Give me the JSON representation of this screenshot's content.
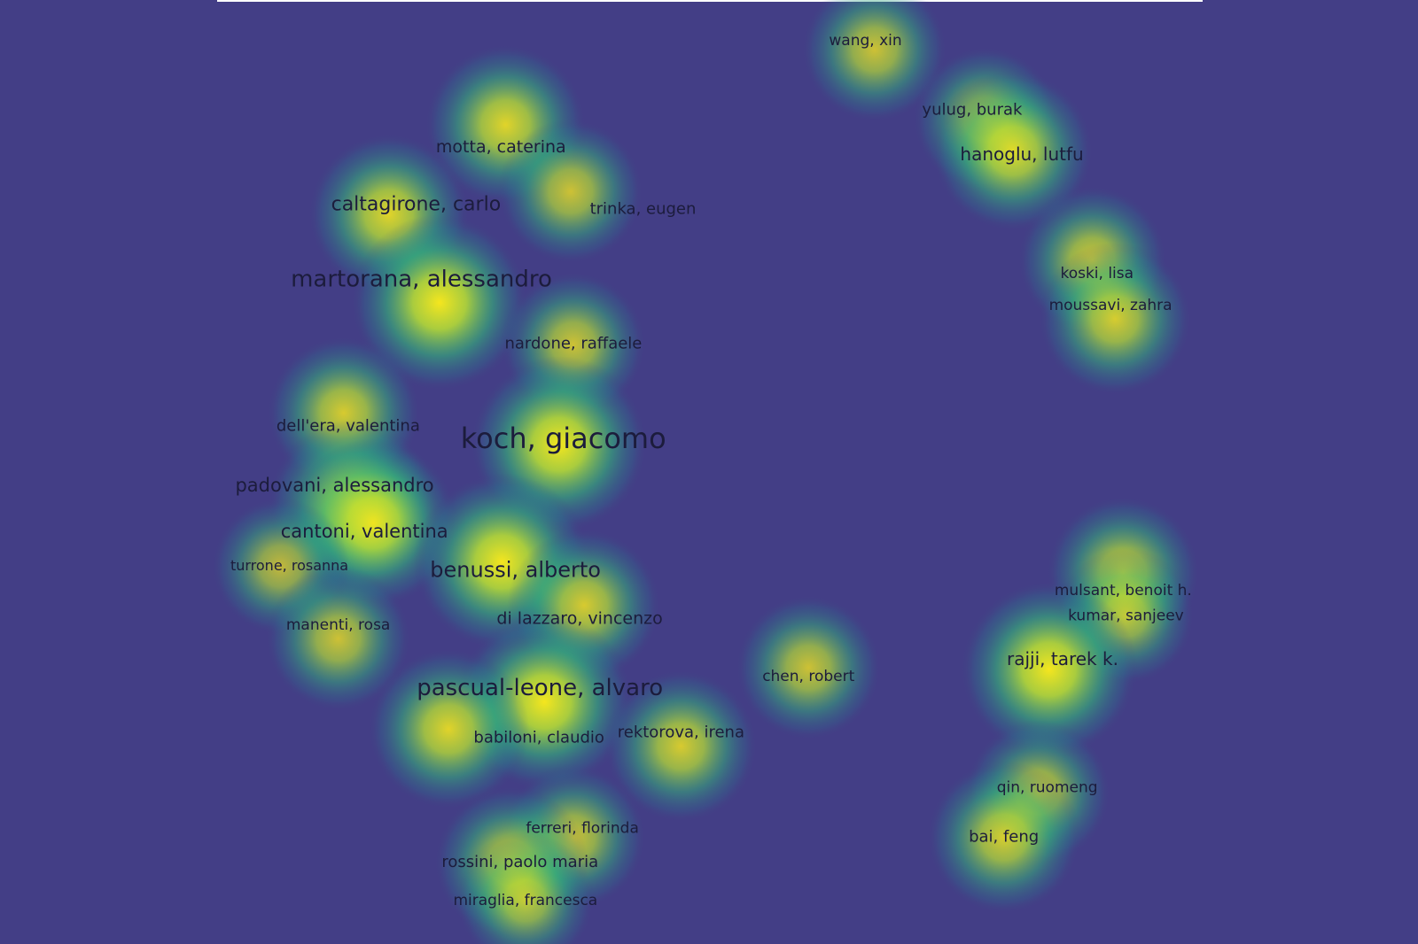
{
  "nodes": [
    {
      "label": "wang, xin"
    },
    {
      "label": "yulug, burak"
    },
    {
      "label": "hanoglu, lutfu"
    },
    {
      "label": "koski, lisa"
    },
    {
      "label": "moussavi, zahra"
    },
    {
      "label": "motta, caterina"
    },
    {
      "label": "caltagirone, carlo"
    },
    {
      "label": "trinka, eugen"
    },
    {
      "label": "martorana, alessandro"
    },
    {
      "label": "nardone, raffaele"
    },
    {
      "label": "dell'era, valentina"
    },
    {
      "label": "koch, giacomo"
    },
    {
      "label": "padovani, alessandro"
    },
    {
      "label": "cantoni, valentina"
    },
    {
      "label": "turrone, rosanna"
    },
    {
      "label": "benussi, alberto"
    },
    {
      "label": "di lazzaro, vincenzo"
    },
    {
      "label": "manenti, rosa"
    },
    {
      "label": "mulsant, benoit h."
    },
    {
      "label": "kumar, sanjeev"
    },
    {
      "label": "rajji, tarek k."
    },
    {
      "label": "chen, robert"
    },
    {
      "label": "pascual-leone, alvaro"
    },
    {
      "label": "babiloni, claudio"
    },
    {
      "label": "rektorova, irena"
    },
    {
      "label": "qin, ruomeng"
    },
    {
      "label": "bai, feng"
    },
    {
      "label": "ferreri, florinda"
    },
    {
      "label": "rossini, paolo maria"
    },
    {
      "label": "miraglia, francesca"
    }
  ]
}
